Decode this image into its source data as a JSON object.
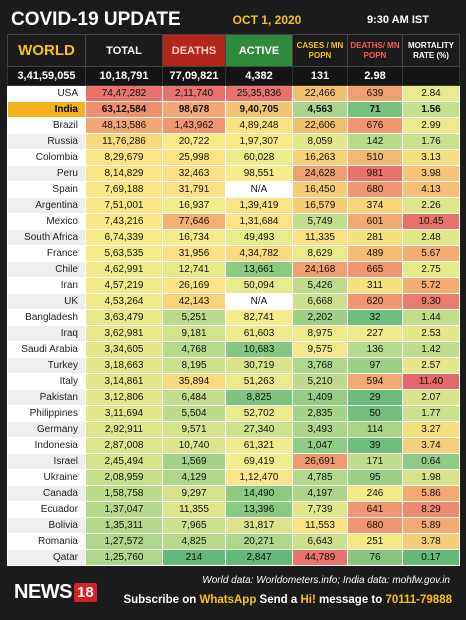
{
  "header": {
    "title": "COVID-19 UPDATE",
    "date": "OCT 1, 2020",
    "time": "9:30 AM IST"
  },
  "columns": {
    "world": "WORLD",
    "total": "TOTAL",
    "deaths": "DEATHS",
    "active": "ACTIVE",
    "cases_mn": "CASES / MN POPN",
    "deaths_mn": "DEATHS/ MN POPN",
    "mortality": "MORTALITY RATE (%)"
  },
  "world_totals": [
    "3,41,59,055",
    "10,18,791",
    "77,09,821",
    "4,382",
    "131",
    "2.98"
  ],
  "rows": [
    {
      "country": "USA",
      "total": "74,47,282",
      "deaths": "2,11,740",
      "active": "25,35,836",
      "cases_mn": "22,466",
      "deaths_mn": "639",
      "mortality": "2.84",
      "colors": [
        "#e8736b",
        "#e8736b",
        "#e8736b",
        "#f0c070",
        "#f0a070",
        "#e7ea8e"
      ]
    },
    {
      "country": "India",
      "total": "63,12,584",
      "deaths": "98,678",
      "active": "9,40,705",
      "cases_mn": "4,563",
      "deaths_mn": "71",
      "mortality": "1.56",
      "colors": [
        "#ee8f6e",
        "#f2a874",
        "#f3c475",
        "#a7d58a",
        "#78c27e",
        "#c5e08c"
      ]
    },
    {
      "country": "Brazil",
      "total": "48,13,586",
      "deaths": "1,43,962",
      "active": "4,89,248",
      "cases_mn": "22,606",
      "deaths_mn": "676",
      "mortality": "2.99",
      "colors": [
        "#f2a874",
        "#f09670",
        "#f8e284",
        "#f0c070",
        "#f09670",
        "#ece98c"
      ]
    },
    {
      "country": "Russia",
      "total": "11,76,286",
      "deaths": "20,722",
      "active": "1,97,307",
      "cases_mn": "8,059",
      "deaths_mn": "142",
      "mortality": "1.76",
      "colors": [
        "#f9d97f",
        "#fbe888",
        "#fbe888",
        "#e3e68a",
        "#b8db8b",
        "#c9e18c"
      ]
    },
    {
      "country": "Colombia",
      "total": "8,29,679",
      "deaths": "25,998",
      "active": "60,028",
      "cases_mn": "16,263",
      "deaths_mn": "510",
      "mortality": "3.13",
      "colors": [
        "#fbe386",
        "#fbe386",
        "#eeeb8e",
        "#f8d07a",
        "#f4b673",
        "#f5df83"
      ]
    },
    {
      "country": "Peru",
      "total": "8,14,829",
      "deaths": "32,463",
      "active": "98,551",
      "cases_mn": "24,628",
      "deaths_mn": "981",
      "mortality": "3.98",
      "colors": [
        "#fbe386",
        "#fbe087",
        "#f7ec8b",
        "#f0a070",
        "#e8736b",
        "#f5c478"
      ]
    },
    {
      "country": "Spain",
      "total": "7,69,188",
      "deaths": "31,791",
      "active": "N/A",
      "cases_mn": "16,450",
      "deaths_mn": "680",
      "mortality": "4.13",
      "colors": [
        "#fbe687",
        "#fbe087",
        "#ffffff",
        "#f6cc79",
        "#f09670",
        "#f5bd76"
      ]
    },
    {
      "country": "Argentina",
      "total": "7,51,001",
      "deaths": "16,937",
      "active": "1,39,419",
      "cases_mn": "16,579",
      "deaths_mn": "374",
      "mortality": "2.26",
      "colors": [
        "#fbe687",
        "#f4ec8c",
        "#fae287",
        "#f6cc79",
        "#f8d47c",
        "#dfe58a"
      ]
    },
    {
      "country": "Mexico",
      "total": "7,43,216",
      "deaths": "77,646",
      "active": "1,31,684",
      "cases_mn": "5,749",
      "deaths_mn": "601",
      "mortality": "10.45",
      "colors": [
        "#fbe687",
        "#f3b073",
        "#fae287",
        "#c2dd8b",
        "#f3a973",
        "#e8736b"
      ]
    },
    {
      "country": "South Africa",
      "total": "6,74,339",
      "deaths": "16,734",
      "active": "49,493",
      "cases_mn": "11,335",
      "deaths_mn": "281",
      "mortality": "2.48",
      "colors": [
        "#f9ea89",
        "#f4ec8c",
        "#e9ea8e",
        "#fbe087",
        "#f8df82",
        "#e4e68a"
      ]
    },
    {
      "country": "France",
      "total": "5,63,535",
      "deaths": "31,956",
      "active": "4,34,782",
      "cases_mn": "8,629",
      "deaths_mn": "489",
      "mortality": "5.67",
      "colors": [
        "#f6ea8b",
        "#fbe087",
        "#f9da81",
        "#ece98c",
        "#f6bb75",
        "#f3ae73"
      ]
    },
    {
      "country": "Chile",
      "total": "4,62,991",
      "deaths": "12,741",
      "active": "13,661",
      "cases_mn": "24,168",
      "deaths_mn": "665",
      "mortality": "2.75",
      "colors": [
        "#f1ea8c",
        "#e9e98c",
        "#8acb80",
        "#f0a070",
        "#f09670",
        "#e8e98b"
      ]
    },
    {
      "country": "Iran",
      "total": "4,57,219",
      "deaths": "26,169",
      "active": "50,094",
      "cases_mn": "5,426",
      "deaths_mn": "311",
      "mortality": "5.72",
      "colors": [
        "#f1ea8c",
        "#fbe386",
        "#e9ea8e",
        "#c0dc8b",
        "#f8df82",
        "#f3ae73"
      ]
    },
    {
      "country": "UK",
      "total": "4,53,264",
      "deaths": "42,143",
      "active": "N/A",
      "cases_mn": "6,668",
      "deaths_mn": "620",
      "mortality": "9.30",
      "colors": [
        "#f1ea8c",
        "#f8d37c",
        "#ffffff",
        "#cbe08c",
        "#f09670",
        "#ea7c6c"
      ]
    },
    {
      "country": "Bangladesh",
      "total": "3,63,479",
      "deaths": "5,251",
      "active": "82,741",
      "cases_mn": "2,202",
      "deaths_mn": "32",
      "mortality": "1.44",
      "colors": [
        "#e8e98b",
        "#b9db8b",
        "#f3ec8c",
        "#9bd085",
        "#6dbd7b",
        "#c2de8b"
      ]
    },
    {
      "country": "Iraq",
      "total": "3,62,981",
      "deaths": "9,181",
      "active": "61,603",
      "cases_mn": "8,975",
      "deaths_mn": "227",
      "mortality": "2.53",
      "colors": [
        "#e8e98b",
        "#d2e38c",
        "#eeeb8e",
        "#efea8c",
        "#f0e98a",
        "#e5e78b"
      ]
    },
    {
      "country": "Saudi Arabia",
      "total": "3,34,605",
      "deaths": "4,768",
      "active": "10,683",
      "cases_mn": "9,575",
      "deaths_mn": "136",
      "mortality": "1.42",
      "colors": [
        "#e4e88b",
        "#b5da8a",
        "#84c87f",
        "#f3e88a",
        "#b7da8a",
        "#c1dd8b"
      ]
    },
    {
      "country": "Turkey",
      "total": "3,18,663",
      "deaths": "8,195",
      "active": "30,719",
      "cases_mn": "3,768",
      "deaths_mn": "97",
      "mortality": "2.57",
      "colors": [
        "#e2e78b",
        "#cde18c",
        "#d8e48c",
        "#aed789",
        "#9bd085",
        "#e5e78b"
      ]
    },
    {
      "country": "Italy",
      "total": "3,14,861",
      "deaths": "35,894",
      "active": "51,263",
      "cases_mn": "5,210",
      "deaths_mn": "594",
      "mortality": "11.40",
      "colors": [
        "#e2e78b",
        "#f9da80",
        "#e9ea8e",
        "#bedb8b",
        "#f3a973",
        "#e36a68"
      ]
    },
    {
      "country": "Pakistan",
      "total": "3,12,806",
      "deaths": "6,484",
      "active": "8,825",
      "cases_mn": "1,409",
      "deaths_mn": "29",
      "mortality": "2.07",
      "colors": [
        "#e1e78b",
        "#c2dd8b",
        "#7dc47e",
        "#93cd84",
        "#6bbc7b",
        "#d9e48a"
      ]
    },
    {
      "country": "Philippines",
      "total": "3,11,694",
      "deaths": "5,504",
      "active": "52,702",
      "cases_mn": "2,835",
      "deaths_mn": "50",
      "mortality": "1.77",
      "colors": [
        "#e1e78b",
        "#bcdc8b",
        "#eaea8e",
        "#a3d387",
        "#72bf7c",
        "#cbe18c"
      ]
    },
    {
      "country": "Germany",
      "total": "2,92,911",
      "deaths": "9,571",
      "active": "27,340",
      "cases_mn": "3,493",
      "deaths_mn": "114",
      "mortality": "3.27",
      "colors": [
        "#dde68b",
        "#d5e48c",
        "#cee18c",
        "#abd688",
        "#a8d588",
        "#f3de82"
      ]
    },
    {
      "country": "Indonesia",
      "total": "2,87,008",
      "deaths": "10,740",
      "active": "61,321",
      "cases_mn": "1,047",
      "deaths_mn": "39",
      "mortality": "3.74",
      "colors": [
        "#dce68b",
        "#dbe58c",
        "#eeeb8e",
        "#8ecb83",
        "#6ebd7b",
        "#f4cf7b"
      ]
    },
    {
      "country": "Israel",
      "total": "2,45,494",
      "deaths": "1,569",
      "active": "69,419",
      "cases_mn": "26,691",
      "deaths_mn": "171",
      "mortality": "0.64",
      "colors": [
        "#d5e48a",
        "#a1d286",
        "#f2ec8e",
        "#ee9a6f",
        "#c1dd8b",
        "#8fcb82"
      ]
    },
    {
      "country": "Ukraine",
      "total": "2,08,959",
      "deaths": "4,129",
      "active": "1,12,470",
      "cases_mn": "4,785",
      "deaths_mn": "95",
      "mortality": "1.98",
      "colors": [
        "#c9e08a",
        "#afd789",
        "#fbe588",
        "#b2d989",
        "#9bd085",
        "#d5e38a"
      ]
    },
    {
      "country": "Canada",
      "total": "1,58,758",
      "deaths": "9,297",
      "active": "14,490",
      "cases_mn": "4,197",
      "deaths_mn": "246",
      "mortality": "5.86",
      "colors": [
        "#bddc89",
        "#d3e38c",
        "#8acb80",
        "#abd688",
        "#f4e987",
        "#f2aa72"
      ]
    },
    {
      "country": "Ecuador",
      "total": "1,37,047",
      "deaths": "11,355",
      "active": "13,396",
      "cases_mn": "7,739",
      "deaths_mn": "641",
      "mortality": "8.29",
      "colors": [
        "#b4d989",
        "#dde68c",
        "#88ca80",
        "#dfe68b",
        "#f09670",
        "#ed8b6f"
      ]
    },
    {
      "country": "Bolivia",
      "total": "1,35,311",
      "deaths": "7,965",
      "active": "31,817",
      "cases_mn": "11,553",
      "deaths_mn": "680",
      "mortality": "5.89",
      "colors": [
        "#b3d889",
        "#cbe08c",
        "#d9e48c",
        "#fae287",
        "#f09670",
        "#f2aa72"
      ]
    },
    {
      "country": "Romania",
      "total": "1,27,572",
      "deaths": "4,825",
      "active": "20,271",
      "cases_mn": "6,643",
      "deaths_mn": "251",
      "mortality": "3.78",
      "colors": [
        "#aed688",
        "#b6da8a",
        "#acd688",
        "#cbe08c",
        "#f5e987",
        "#f4cd7b"
      ]
    },
    {
      "country": "Qatar",
      "total": "1,25,760",
      "deaths": "214",
      "active": "2,847",
      "cases_mn": "44,789",
      "deaths_mn": "76",
      "mortality": "0.17",
      "colors": [
        "#add688",
        "#63b87a",
        "#63b87a",
        "#e8736b",
        "#88c680",
        "#63b87a"
      ]
    }
  ],
  "footer": {
    "logo_text": "NEWS",
    "logo_num": "18",
    "source": "World data: Worldometers.info; India data: mohfw.gov.in",
    "subscribe_1": "Subscribe on ",
    "subscribe_2": "WhatsApp",
    "subscribe_3": " Send a ",
    "subscribe_4": "Hi!",
    "subscribe_5": " message to ",
    "subscribe_6": "70111-79888"
  },
  "colors": {
    "background": "#1b1b1b",
    "accent": "#f6c21a",
    "india_highlight": "#f6b21a"
  }
}
